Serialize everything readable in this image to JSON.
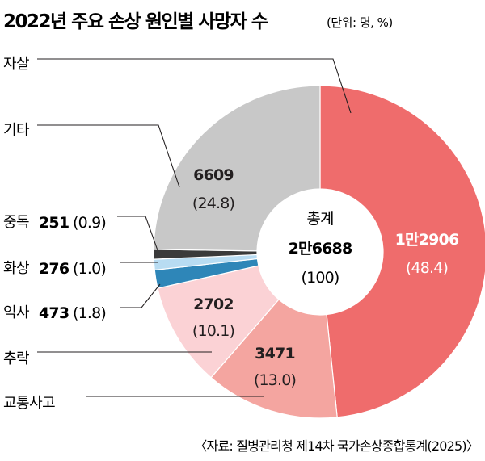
{
  "title": "2022년 주요 손상 원인별 사망자 수",
  "unit": "(단위: 명, %)",
  "source": "〈자료: 질병관리청 제14차 국가손상종합통계(2025)〉",
  "colors": {
    "suicide": "#ef6c6c",
    "traffic": "#f4a5a0",
    "fall": "#fbd2d5",
    "drowning": "#2e86b8",
    "burn": "#b8dcf2",
    "poisoning": "#3a3a3a",
    "other": "#c8c8c8"
  },
  "chart_data": {
    "type": "pie",
    "style": "donut",
    "title": "2022년 주요 손상 원인별 사망자 수",
    "unit": "(단위: 명, %)",
    "total": {
      "label": "총계",
      "value_text": "2만6688",
      "pct_text": "(100)",
      "value": 26688
    },
    "slices": [
      {
        "key": "suicide",
        "label": "자살",
        "value": 12906,
        "value_text": "1만2906",
        "pct": 48.4,
        "pct_text": "(48.4)"
      },
      {
        "key": "traffic",
        "label": "교통사고",
        "value": 3471,
        "value_text": "3471",
        "pct": 13.0,
        "pct_text": "(13.0)"
      },
      {
        "key": "fall",
        "label": "추락",
        "value": 2702,
        "value_text": "2702",
        "pct": 10.1,
        "pct_text": "(10.1)"
      },
      {
        "key": "drowning",
        "label": "익사",
        "value": 473,
        "value_text": "473",
        "pct": 1.8,
        "pct_text": "(1.8)"
      },
      {
        "key": "burn",
        "label": "화상",
        "value": 276,
        "value_text": "276",
        "pct": 1.0,
        "pct_text": "(1.0)"
      },
      {
        "key": "poisoning",
        "label": "중독",
        "value": 251,
        "value_text": "251",
        "pct": 0.9,
        "pct_text": "(0.9)"
      },
      {
        "key": "other",
        "label": "기타",
        "value": 6609,
        "value_text": "6609",
        "pct": 24.8,
        "pct_text": "(24.8)"
      }
    ],
    "legend": "left"
  }
}
